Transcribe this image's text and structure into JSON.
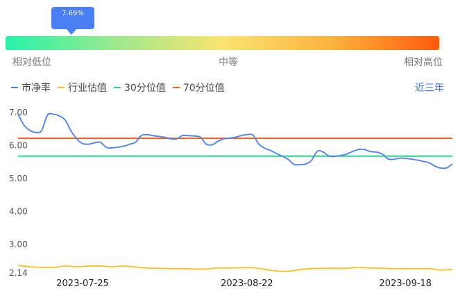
{
  "indicator": {
    "current_percentile_label": "7.69%",
    "current_percentile": 0.0769,
    "scale_labels": [
      "相对低位",
      "中等",
      "相对高位"
    ]
  },
  "legend": [
    {
      "name": "市净率",
      "color": "#4a7ef5"
    },
    {
      "name": "行业估值",
      "color": "#f8c024"
    },
    {
      "name": "30分位值",
      "color": "#1fd88a"
    },
    {
      "name": "70分位值",
      "color": "#f0621e"
    }
  ],
  "period_label": "近三年",
  "chart_data": {
    "type": "line",
    "title": "",
    "xlabel": "",
    "ylabel": "",
    "ylim": [
      2.14,
      7.0
    ],
    "y_tick_labels": [
      "7.00",
      "6.00",
      "5.00",
      "4.00",
      "3.00",
      "2.14"
    ],
    "x_tick_labels": [
      "2023-07-25",
      "2023-08-22",
      "2023-09-18"
    ],
    "x_range": [
      "2023-07-14",
      "2023-09-26"
    ],
    "series": [
      {
        "name": "市净率",
        "color": "#4a7ef5",
        "points": [
          [
            "2023-07-14",
            6.95
          ],
          [
            "2023-07-15",
            6.62
          ],
          [
            "2023-07-16",
            6.46
          ],
          [
            "2023-07-17",
            6.4
          ],
          [
            "2023-07-18",
            6.45
          ],
          [
            "2023-07-19",
            6.92
          ],
          [
            "2023-07-20",
            6.95
          ],
          [
            "2023-07-21",
            6.9
          ],
          [
            "2023-07-22",
            6.78
          ],
          [
            "2023-07-23",
            6.45
          ],
          [
            "2023-07-24",
            6.2
          ],
          [
            "2023-07-25",
            6.06
          ],
          [
            "2023-07-26",
            6.04
          ],
          [
            "2023-07-27",
            6.08
          ],
          [
            "2023-07-28",
            6.1
          ],
          [
            "2023-07-29",
            5.95
          ],
          [
            "2023-07-30",
            5.93
          ],
          [
            "2023-08-01",
            5.98
          ],
          [
            "2023-08-02",
            6.04
          ],
          [
            "2023-08-03",
            6.1
          ],
          [
            "2023-08-04",
            6.3
          ],
          [
            "2023-08-05",
            6.33
          ],
          [
            "2023-08-06",
            6.3
          ],
          [
            "2023-08-08",
            6.25
          ],
          [
            "2023-08-09",
            6.2
          ],
          [
            "2023-08-10",
            6.2
          ],
          [
            "2023-08-11",
            6.3
          ],
          [
            "2023-08-12",
            6.3
          ],
          [
            "2023-08-14",
            6.26
          ],
          [
            "2023-08-15",
            6.05
          ],
          [
            "2023-08-16",
            6.02
          ],
          [
            "2023-08-17",
            6.12
          ],
          [
            "2023-08-18",
            6.2
          ],
          [
            "2023-08-19",
            6.22
          ],
          [
            "2023-08-20",
            6.25
          ],
          [
            "2023-08-21",
            6.3
          ],
          [
            "2023-08-22",
            6.33
          ],
          [
            "2023-08-23",
            6.32
          ],
          [
            "2023-08-24",
            6.05
          ],
          [
            "2023-08-25",
            5.92
          ],
          [
            "2023-08-26",
            5.85
          ],
          [
            "2023-08-27",
            5.76
          ],
          [
            "2023-08-28",
            5.68
          ],
          [
            "2023-08-29",
            5.58
          ],
          [
            "2023-08-30",
            5.43
          ],
          [
            "2023-08-31",
            5.42
          ],
          [
            "2023-09-01",
            5.44
          ],
          [
            "2023-09-02",
            5.55
          ],
          [
            "2023-09-03",
            5.83
          ],
          [
            "2023-09-04",
            5.8
          ],
          [
            "2023-09-05",
            5.68
          ],
          [
            "2023-09-06",
            5.67
          ],
          [
            "2023-09-07",
            5.7
          ],
          [
            "2023-09-08",
            5.74
          ],
          [
            "2023-09-09",
            5.82
          ],
          [
            "2023-09-10",
            5.88
          ],
          [
            "2023-09-11",
            5.88
          ],
          [
            "2023-09-12",
            5.82
          ],
          [
            "2023-09-13",
            5.8
          ],
          [
            "2023-09-14",
            5.75
          ],
          [
            "2023-09-15",
            5.6
          ],
          [
            "2023-09-16",
            5.58
          ],
          [
            "2023-09-17",
            5.62
          ],
          [
            "2023-09-18",
            5.61
          ],
          [
            "2023-09-19",
            5.59
          ],
          [
            "2023-09-20",
            5.56
          ],
          [
            "2023-09-21",
            5.52
          ],
          [
            "2023-09-22",
            5.48
          ],
          [
            "2023-09-23",
            5.38
          ],
          [
            "2023-09-24",
            5.32
          ],
          [
            "2023-09-25",
            5.32
          ],
          [
            "2023-09-26",
            5.44
          ]
        ]
      },
      {
        "name": "行业估值",
        "color": "#f8c024",
        "points": [
          [
            "2023-07-14",
            2.37
          ],
          [
            "2023-07-16",
            2.33
          ],
          [
            "2023-07-18",
            2.31
          ],
          [
            "2023-07-20",
            2.31
          ],
          [
            "2023-07-22",
            2.35
          ],
          [
            "2023-07-24",
            2.33
          ],
          [
            "2023-07-26",
            2.35
          ],
          [
            "2023-07-28",
            2.35
          ],
          [
            "2023-07-30",
            2.33
          ],
          [
            "2023-08-01",
            2.35
          ],
          [
            "2023-08-03",
            2.32
          ],
          [
            "2023-08-05",
            2.29
          ],
          [
            "2023-08-07",
            2.28
          ],
          [
            "2023-08-09",
            2.27
          ],
          [
            "2023-08-11",
            2.27
          ],
          [
            "2023-08-13",
            2.26
          ],
          [
            "2023-08-15",
            2.26
          ],
          [
            "2023-08-17",
            2.29
          ],
          [
            "2023-08-19",
            2.29
          ],
          [
            "2023-08-21",
            2.3
          ],
          [
            "2023-08-23",
            2.3
          ],
          [
            "2023-08-25",
            2.25
          ],
          [
            "2023-08-27",
            2.2
          ],
          [
            "2023-08-29",
            2.19
          ],
          [
            "2023-08-31",
            2.24
          ],
          [
            "2023-09-02",
            2.27
          ],
          [
            "2023-09-04",
            2.28
          ],
          [
            "2023-09-06",
            2.28
          ],
          [
            "2023-09-08",
            2.28
          ],
          [
            "2023-09-10",
            2.31
          ],
          [
            "2023-09-12",
            2.29
          ],
          [
            "2023-09-14",
            2.28
          ],
          [
            "2023-09-16",
            2.27
          ],
          [
            "2023-09-18",
            2.27
          ],
          [
            "2023-09-20",
            2.27
          ],
          [
            "2023-09-22",
            2.27
          ],
          [
            "2023-09-24",
            2.23
          ],
          [
            "2023-09-26",
            2.25
          ]
        ]
      },
      {
        "name": "30分位值",
        "color": "#1fd88a",
        "points": [
          [
            "2023-07-14",
            5.68
          ],
          [
            "2023-09-26",
            5.68
          ]
        ]
      },
      {
        "name": "70分位值",
        "color": "#f0621e",
        "points": [
          [
            "2023-07-14",
            6.22
          ],
          [
            "2023-09-26",
            6.22
          ]
        ]
      }
    ],
    "grid": false,
    "legend_position": "top-left"
  }
}
